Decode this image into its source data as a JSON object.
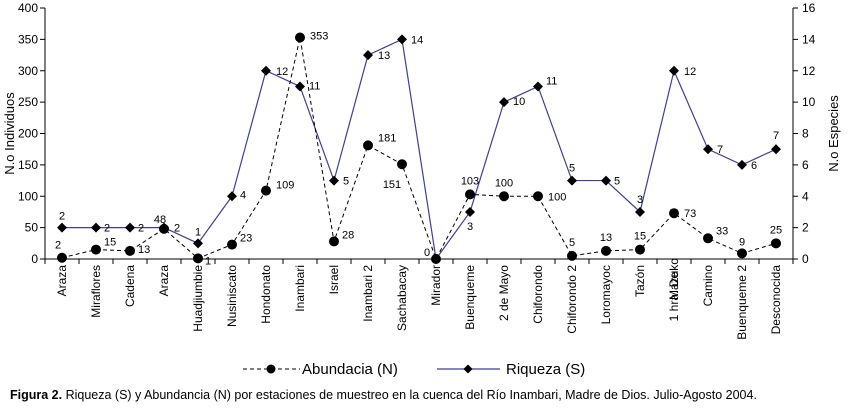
{
  "chart_data": {
    "type": "line",
    "categories": [
      "Araza",
      "Miraflores",
      "Cadena",
      "Araza",
      "Huadjiumbie",
      "Nusiniscato",
      "Hondonato",
      "Inambari",
      "Israel",
      "Inambari 2",
      "Sachabacay",
      "Mirador",
      "Buenqueme",
      "2 de Mayo",
      "Chiforondo",
      "Chiforondo 2",
      "Loromayoc",
      "Tazón",
      "1 hra. De Mazuko",
      "Camino",
      "Buenqueme 2",
      "Desconocida"
    ],
    "y_left": {
      "label": "N.o Individuos",
      "ylim": [
        0,
        400
      ],
      "ticks": [
        "0",
        "50",
        "100",
        "150",
        "200",
        "250",
        "300",
        "350",
        "400"
      ]
    },
    "y_right": {
      "label": "N.o Especies",
      "ylim": [
        0,
        16
      ],
      "ticks": [
        "0",
        "2",
        "4",
        "6",
        "8",
        "10",
        "12",
        "14",
        "16"
      ]
    },
    "series": [
      {
        "name": "Abundacia (N)",
        "axis": "left",
        "style": "dashed",
        "marker": "circle",
        "color": "#000000",
        "values": [
          2,
          15,
          13,
          48,
          1,
          23,
          109,
          353,
          28,
          181,
          151,
          0,
          103,
          100,
          100,
          5,
          13,
          15,
          73,
          33,
          9,
          25
        ],
        "labels": [
          "2",
          "15",
          "13",
          "48",
          "1",
          "23",
          "109",
          "353",
          "28",
          "181",
          "151",
          "0",
          "103",
          "100",
          "100",
          "5",
          "13",
          "15",
          "73",
          "33",
          "9",
          "25"
        ]
      },
      {
        "name": "Riqueza (S)",
        "axis": "right",
        "style": "solid",
        "marker": "diamond",
        "color": "#3f3f95",
        "values": [
          2,
          2,
          2,
          2,
          1,
          4,
          12,
          11,
          5,
          13,
          14,
          0,
          3,
          10,
          11,
          5,
          5,
          3,
          12,
          7,
          6,
          7
        ],
        "labels": [
          "2",
          "2",
          "2",
          "2",
          "1",
          "4",
          "12",
          "11",
          "5",
          "13",
          "14",
          "",
          "3",
          "10",
          "11",
          "5",
          "5",
          "3",
          "12",
          "7",
          "6",
          "7"
        ]
      }
    ],
    "legend": "bottom"
  },
  "caption": {
    "bold": "Figura 2.",
    "text": " Riqueza (S) y Abundancia (N) por estaciones de muestreo en la cuenca del Río Inambari, Madre de Dios. Julio-Agosto 2004."
  }
}
